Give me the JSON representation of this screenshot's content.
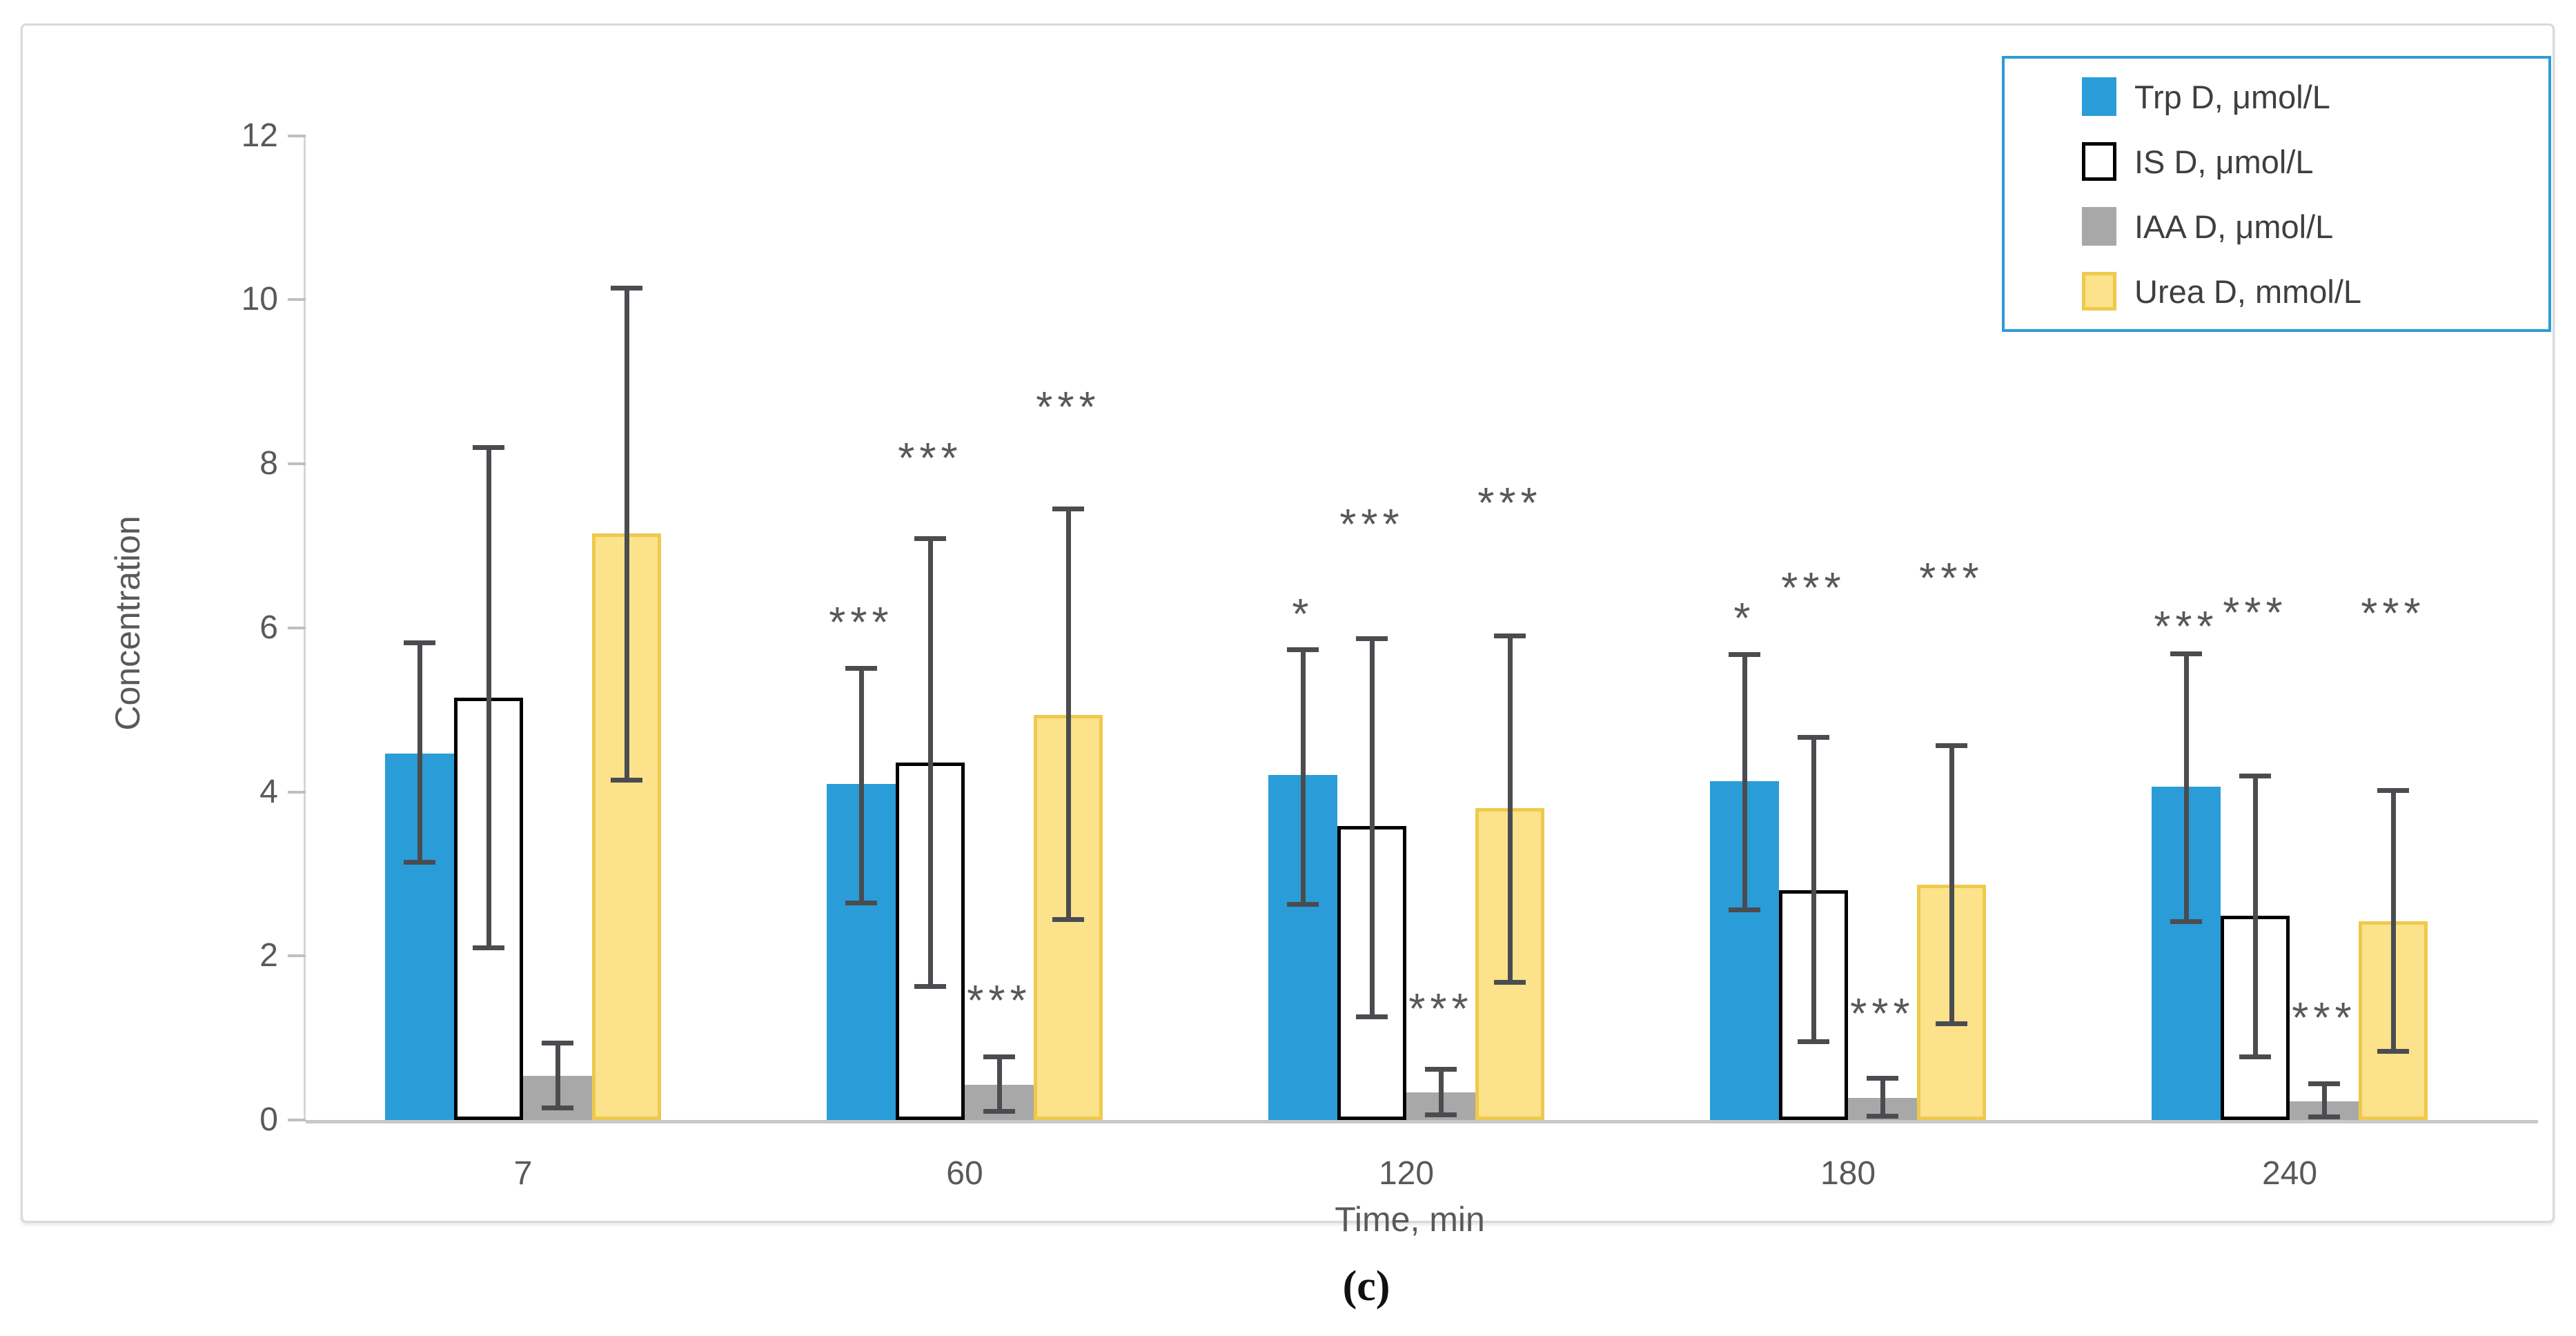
{
  "figure_caption": "(c)",
  "chart_data": {
    "type": "bar",
    "title": "",
    "ylabel": "Concentration",
    "xlabel": "Time, min",
    "ylim": [
      0,
      12
    ],
    "yticks": [
      0,
      2,
      4,
      6,
      8,
      10,
      12
    ],
    "grid": false,
    "legend_position": "top-right",
    "legend_border_color": "#2E9BD6",
    "error_bar_color": "#4A4C50",
    "sig_color": "#595959",
    "categories": [
      "7",
      "60",
      "120",
      "180",
      "240"
    ],
    "series": [
      {
        "key": "trp",
        "name": "Trp D, μmol/L",
        "fill": "#2A9DD8",
        "border": "",
        "values": [
          4.47,
          4.1,
          4.21,
          4.13,
          4.06
        ],
        "err_lo": [
          3.15,
          2.65,
          2.63,
          2.57,
          2.42
        ],
        "err_hi": [
          5.82,
          5.51,
          5.74,
          5.68,
          5.69
        ],
        "sig": [
          "",
          "***",
          "*",
          "*",
          "***"
        ],
        "sig_y": [
          0,
          6.11,
          6.21,
          6.16,
          6.06
        ]
      },
      {
        "key": "is",
        "name": "IS D, μmol/L",
        "fill": "#FFFFFF",
        "border": "#000000",
        "values": [
          5.15,
          4.36,
          3.58,
          2.8,
          2.49
        ],
        "err_lo": [
          2.1,
          1.63,
          1.26,
          0.96,
          0.77
        ],
        "err_hi": [
          8.2,
          7.09,
          5.87,
          4.67,
          4.2
        ],
        "sig": [
          "",
          "***",
          "***",
          "***",
          "***"
        ],
        "sig_y": [
          0,
          8.11,
          7.3,
          6.53,
          6.23
        ]
      },
      {
        "key": "iaa",
        "name": "IAA D, μmol/L",
        "fill": "#A8A8A8",
        "border": "",
        "values": [
          0.54,
          0.43,
          0.34,
          0.27,
          0.23
        ],
        "err_lo": [
          0.15,
          0.11,
          0.07,
          0.05,
          0.04
        ],
        "err_hi": [
          0.94,
          0.77,
          0.62,
          0.51,
          0.45
        ],
        "sig": [
          "",
          "***",
          "***",
          "***",
          "***"
        ],
        "sig_y": [
          0,
          1.5,
          1.4,
          1.34,
          1.29
        ]
      },
      {
        "key": "urea",
        "name": "Urea D, mmol/L",
        "fill": "#FBE28B",
        "border": "#EFC94C",
        "values": [
          7.15,
          4.94,
          3.8,
          2.87,
          2.42
        ],
        "err_lo": [
          4.15,
          2.45,
          1.68,
          1.18,
          0.84
        ],
        "err_hi": [
          10.15,
          7.45,
          5.91,
          4.57,
          4.02
        ],
        "sig": [
          "",
          "***",
          "***",
          "***",
          "***"
        ],
        "sig_y": [
          0,
          8.73,
          7.56,
          6.65,
          6.22
        ]
      }
    ]
  }
}
